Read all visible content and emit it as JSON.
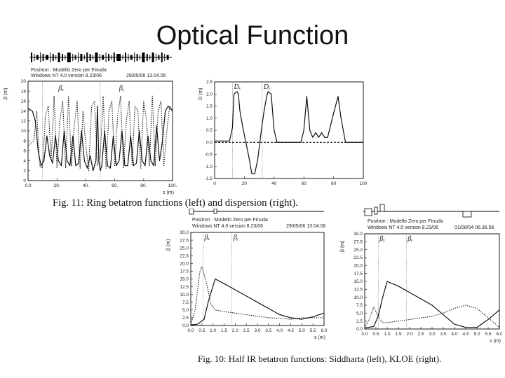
{
  "slide_title": "Optical Function",
  "captions": {
    "fig11": "Fig. 11: Ring betatron functions (left) and dispersion (right).",
    "fig10": "Fig. 10: Half IR betatron functions: Siddharta (left), KLOE (right)."
  },
  "panel_headers": {
    "ring_beta": {
      "line1": "Positron : Modello Zero per Finuda",
      "line2": "Windows NT 4.0 version 8.23/06",
      "date": "29/05/06    13.04.06"
    },
    "sidd": {
      "line1": "Positron : Modello Zero per Finuda",
      "line2": "Windows NT 4.0 version 8.23/06",
      "date": "29/05/06    13.04.06"
    },
    "kloe": {
      "line1": "Positron : Modello Zero per Finuda",
      "line2": "Windows NT 4.0 version 8.23/06",
      "date": "01/08/04    06.36.56"
    }
  },
  "chart_data": [
    {
      "id": "ring_beta",
      "type": "line",
      "title": "",
      "xlabel": "s (m)",
      "ylabel": "β (m)",
      "xlim": [
        0,
        100
      ],
      "ylim": [
        0,
        20
      ],
      "xticks": [
        "0.0",
        "20.",
        "40.",
        "60.",
        "80.",
        "100."
      ],
      "yticks": [
        "0",
        "2",
        "4",
        "6",
        "8",
        "10",
        "12",
        "14",
        "16",
        "18",
        "20"
      ],
      "annotations": [
        "βₓ",
        "βᵧ"
      ],
      "grid": false,
      "series": [
        {
          "style": "solid",
          "x": [
            0,
            3,
            5,
            7,
            9,
            11,
            13,
            15,
            17,
            19,
            21,
            23,
            25,
            27,
            29,
            31,
            33,
            35,
            37,
            39,
            41,
            43,
            45,
            47,
            48,
            49,
            50,
            51,
            53,
            55,
            57,
            59,
            61,
            63,
            65,
            67,
            69,
            71,
            73,
            75,
            77,
            79,
            81,
            83,
            85,
            87,
            89,
            91,
            93,
            95,
            97,
            100
          ],
          "y": [
            14.5,
            14,
            12,
            6,
            3,
            4,
            9,
            5,
            3.5,
            9,
            4,
            3,
            10,
            4,
            3,
            9,
            3,
            3.5,
            10,
            4,
            2.5,
            5,
            2,
            4,
            15,
            4,
            2,
            3,
            10,
            3,
            2.5,
            9,
            3,
            4,
            10,
            3,
            3,
            9,
            3,
            3.5,
            10,
            4,
            3,
            9,
            4,
            3,
            11,
            4,
            8,
            14,
            15,
            14
          ]
        },
        {
          "style": "dotted",
          "x": [
            0,
            4,
            6,
            8,
            10,
            12,
            14,
            16,
            18,
            20,
            22,
            24,
            26,
            28,
            30,
            32,
            34,
            36,
            38,
            40,
            42,
            44,
            46,
            48,
            50,
            52,
            54,
            56,
            58,
            60,
            62,
            64,
            66,
            68,
            70,
            72,
            74,
            76,
            78,
            80,
            82,
            84,
            86,
            88,
            90,
            92,
            94,
            96,
            98,
            100
          ],
          "y": [
            7,
            8,
            14,
            3,
            2.5,
            13,
            15,
            4,
            17,
            2.5,
            12,
            16,
            2.5,
            17,
            3,
            11,
            16,
            2.5,
            14,
            7,
            2,
            15,
            16,
            3,
            5,
            17,
            2.5,
            14,
            16,
            3,
            13,
            17,
            2.5,
            12,
            16,
            3,
            15,
            14,
            2.5,
            16,
            12,
            3,
            17,
            3,
            14,
            16,
            3,
            10,
            15,
            14
          ]
        }
      ]
    },
    {
      "id": "dispersion",
      "type": "line",
      "title": "",
      "xlabel": "",
      "ylabel": "D (m)",
      "xlim": [
        0,
        100
      ],
      "ylim": [
        -1.5,
        2.5
      ],
      "xticks": [
        "0",
        "20",
        "40",
        "60",
        "80",
        "100"
      ],
      "yticks": [
        "-1.5",
        "-1.0",
        "-0.5",
        "0.0",
        "0.5",
        "1.0",
        "1.5",
        "2.0",
        "2.5"
      ],
      "annotations": [
        "Dₓ",
        "Dᵧ"
      ],
      "grid": false,
      "series": [
        {
          "style": "solid",
          "x": [
            0,
            10,
            12,
            13,
            15,
            16,
            17,
            19,
            21,
            23,
            25,
            27,
            29,
            31,
            33,
            35,
            36,
            38,
            40,
            42,
            44,
            46,
            48,
            50,
            52,
            54,
            58,
            60,
            62,
            64,
            66,
            68,
            70,
            72,
            74,
            76,
            80,
            83,
            85,
            88,
            90,
            92,
            95,
            100
          ],
          "y": [
            0.05,
            0.05,
            0.6,
            2,
            2.1,
            2,
            1.3,
            0.6,
            0,
            -0.6,
            -1.3,
            -1.3,
            -0.7,
            0.3,
            1.2,
            1.9,
            2.1,
            2,
            0.5,
            0,
            0,
            0,
            0,
            0,
            0,
            0,
            0,
            0.5,
            1.9,
            0.5,
            0.2,
            0.4,
            0.2,
            0.4,
            0.2,
            0.2,
            1.2,
            1.9,
            1,
            0,
            0,
            0,
            0,
            0
          ]
        },
        {
          "style": "dashed",
          "x": [
            0,
            100
          ],
          "y": [
            0,
            0
          ]
        }
      ]
    },
    {
      "id": "sidd",
      "type": "line",
      "title": "",
      "xlabel": "s (m)",
      "ylabel": "β (m)",
      "xlim": [
        0,
        6
      ],
      "ylim": [
        0,
        30
      ],
      "xticks": [
        "0.0",
        "0.5",
        "1.0",
        "1.5",
        "2.0",
        "2.5",
        "3.0",
        "3.5",
        "4.0",
        "4.5",
        "5.0",
        "5.5",
        "6.0"
      ],
      "yticks": [
        "0.0",
        "2.5",
        "5.0",
        "7.5",
        "10.0",
        "12.5",
        "15.0",
        "17.5",
        "20.0",
        "22.5",
        "25.0",
        "27.5",
        "30.0"
      ],
      "annotations": [
        "βₓ",
        "βᵧ"
      ],
      "grid": false,
      "series": [
        {
          "style": "solid",
          "x": [
            0,
            0.3,
            0.6,
            0.8,
            1.1,
            1.5,
            2,
            2.5,
            3,
            3.5,
            4,
            4.5,
            5,
            5.5,
            6
          ],
          "y": [
            0.2,
            0.4,
            2,
            8,
            15,
            13.5,
            11.5,
            9.5,
            7.5,
            5.5,
            3.5,
            2.5,
            2,
            2.8,
            4
          ]
        },
        {
          "style": "dotted",
          "x": [
            0,
            0.2,
            0.4,
            0.5,
            0.7,
            0.9,
            1.1,
            1.5,
            2,
            2.5,
            3,
            3.5,
            4,
            4.5,
            5,
            5.5,
            6
          ],
          "y": [
            0.5,
            5,
            17,
            19,
            14,
            7,
            5,
            4.5,
            4,
            3.5,
            3,
            2.5,
            2.3,
            2,
            2.5,
            2.5,
            2.5
          ]
        }
      ]
    },
    {
      "id": "kloe",
      "type": "line",
      "title": "",
      "xlabel": "s (m)",
      "ylabel": "β (m)",
      "xlim": [
        0,
        6
      ],
      "ylim": [
        0,
        30
      ],
      "xticks": [
        "0.0",
        "0.5",
        "1.0",
        "1.5",
        "2.0",
        "2.5",
        "3.0",
        "3.5",
        "4.0",
        "4.5",
        "5.0",
        "5.5",
        "6.0"
      ],
      "yticks": [
        "0.0",
        "2.5",
        "5.0",
        "7.5",
        "10.0",
        "12.5",
        "15.0",
        "17.5",
        "20.0",
        "22.5",
        "25.0",
        "27.5",
        "30.0"
      ],
      "annotations": [
        "βₓ",
        "βᵧ"
      ],
      "grid": false,
      "series": [
        {
          "style": "solid",
          "x": [
            0,
            0.4,
            0.6,
            0.8,
            1,
            1.5,
            2,
            2.5,
            3,
            3.5,
            4,
            4.5,
            5,
            5.5,
            6
          ],
          "y": [
            0.3,
            0.8,
            4,
            10,
            15,
            13.5,
            11.5,
            9.5,
            7.5,
            4.5,
            1.5,
            0.5,
            0.5,
            3,
            6
          ]
        },
        {
          "style": "dotted",
          "x": [
            0,
            0.2,
            0.4,
            0.6,
            0.8,
            1,
            1.5,
            2,
            2.5,
            3,
            3.5,
            4,
            4.5,
            5,
            5.5,
            6
          ],
          "y": [
            0.3,
            3,
            7,
            4,
            2,
            2,
            2.5,
            3,
            3.5,
            4,
            5,
            6.5,
            7.5,
            6.5,
            3.5,
            0.5
          ]
        }
      ]
    }
  ]
}
